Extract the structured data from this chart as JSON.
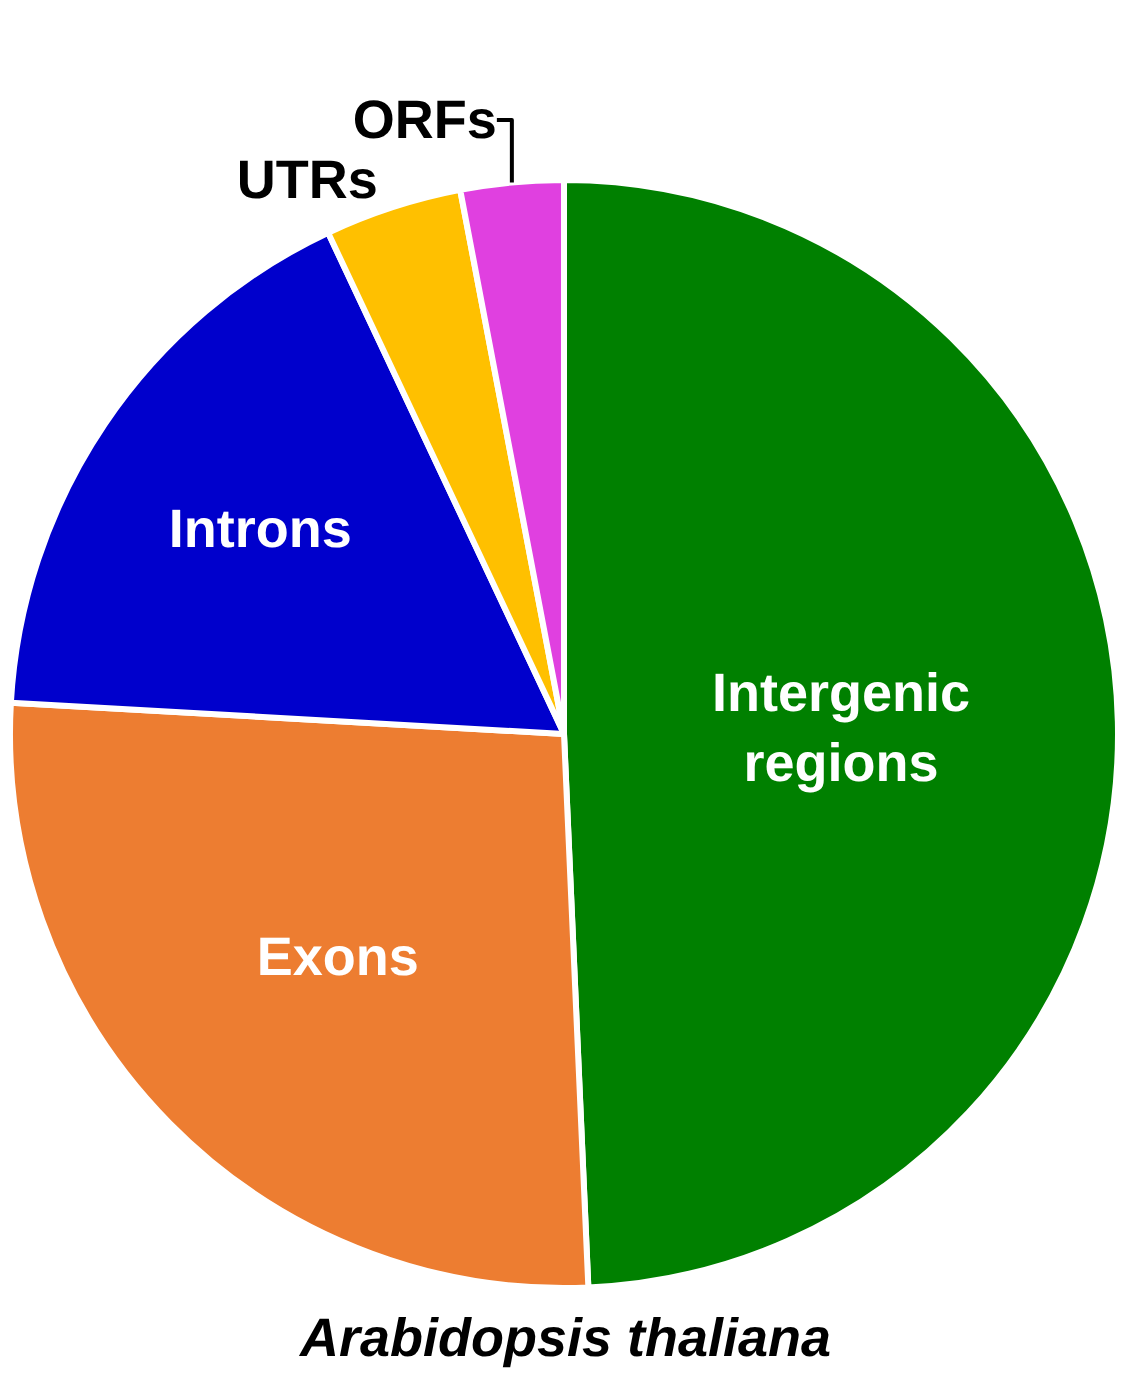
{
  "chart_data": {
    "type": "pie",
    "title": "Arabidopsis thaliana",
    "categories": [
      "Intergenic regions",
      "Exons",
      "Introns",
      "UTRs",
      "ORFs"
    ],
    "values": [
      49.3,
      26.6,
      17.1,
      4.0,
      3.0
    ],
    "colors": [
      "#008000",
      "#ed7d31",
      "#0000cc",
      "#ffc000",
      "#e040e0"
    ],
    "legend": false
  }
}
